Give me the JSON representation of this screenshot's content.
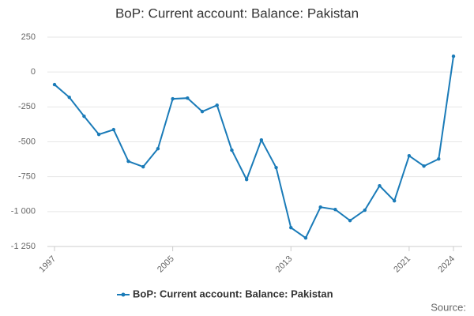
{
  "chart_data": {
    "type": "line",
    "title": "BoP: Current account: Balance: Pakistan",
    "source": "Source:",
    "x": [
      1997,
      1998,
      1999,
      2000,
      2001,
      2002,
      2003,
      2004,
      2005,
      2006,
      2007,
      2008,
      2009,
      2010,
      2011,
      2012,
      2013,
      2014,
      2015,
      2016,
      2017,
      2018,
      2019,
      2020,
      2021,
      2022,
      2023,
      2024
    ],
    "series": [
      {
        "name": "BoP: Current account: Balance: Pakistan",
        "color": "#1a7bb8",
        "values": [
          -90,
          -181,
          -317,
          -447,
          -413,
          -640,
          -679,
          -549,
          -192,
          -187,
          -283,
          -238,
          -560,
          -770,
          -487,
          -685,
          -1115,
          -1189,
          -968,
          -985,
          -1064,
          -990,
          -815,
          -923,
          -600,
          -674,
          -623,
          113
        ]
      }
    ],
    "xlim": [
      1997,
      2024
    ],
    "xticks": [
      1997,
      2005,
      2013,
      2021,
      2024
    ],
    "ylim": [
      -1250,
      250
    ],
    "yticks": [
      250,
      0,
      -250,
      -500,
      -750,
      {
        "value": -1000,
        "label": "-1 000"
      },
      {
        "value": -1250,
        "label": "-1 250"
      }
    ],
    "grid": true,
    "legend": "bottom"
  }
}
